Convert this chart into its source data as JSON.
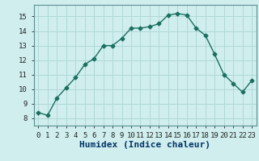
{
  "x": [
    0,
    1,
    2,
    3,
    4,
    5,
    6,
    7,
    8,
    9,
    10,
    11,
    12,
    13,
    14,
    15,
    16,
    17,
    18,
    19,
    20,
    21,
    22,
    23
  ],
  "y": [
    8.4,
    8.2,
    9.4,
    10.1,
    10.8,
    11.7,
    12.1,
    13.0,
    13.0,
    13.5,
    14.2,
    14.2,
    14.3,
    14.5,
    15.1,
    15.2,
    15.1,
    14.2,
    13.7,
    12.4,
    11.0,
    10.4,
    9.8,
    10.6
  ],
  "line_color": "#1a7060",
  "bg_color": "#d0eeee",
  "grid_color": "#b0d8d8",
  "xlabel": "Humidex (Indice chaleur)",
  "xlabel_fontsize": 8,
  "tick_fontsize": 6.5,
  "ylim": [
    7.5,
    15.8
  ],
  "yticks": [
    8,
    9,
    10,
    11,
    12,
    13,
    14,
    15
  ],
  "xlim": [
    -0.5,
    23.5
  ],
  "xticks": [
    0,
    1,
    2,
    3,
    4,
    5,
    6,
    7,
    8,
    9,
    10,
    11,
    12,
    13,
    14,
    15,
    16,
    17,
    18,
    19,
    20,
    21,
    22,
    23
  ],
  "marker": "D",
  "marker_size": 2.5,
  "line_width": 1.0
}
